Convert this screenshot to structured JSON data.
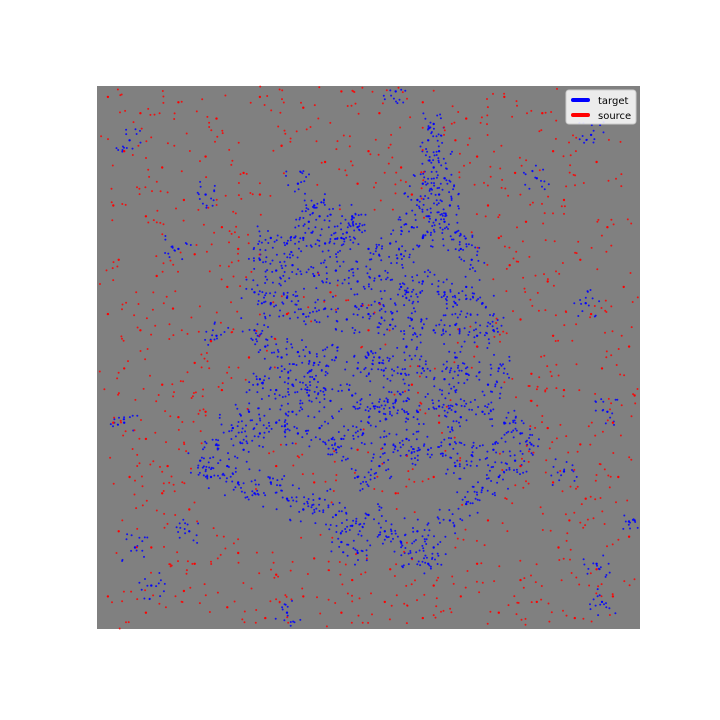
{
  "chart_data": {
    "type": "scatter",
    "title": "",
    "xlabel": "",
    "ylabel": "",
    "xlim": [
      0,
      1
    ],
    "ylim": [
      0,
      1
    ],
    "axes_visible": false,
    "grid": false,
    "plot_background": "#808080",
    "legend": {
      "placement": "top-right",
      "entries": [
        {
          "label": "target",
          "color": "#0000ff"
        },
        {
          "label": "source",
          "color": "#ff0000"
        }
      ]
    },
    "series": [
      {
        "name": "target",
        "color": "#0000ff",
        "description_shape": "dense point cloud shaped like a church/castle with spire",
        "points": [
          [
            0.62,
            0.93
          ],
          [
            0.61,
            0.9
          ],
          [
            0.63,
            0.88
          ],
          [
            0.62,
            0.85
          ],
          [
            0.64,
            0.83
          ],
          [
            0.6,
            0.82
          ],
          [
            0.63,
            0.8
          ],
          [
            0.65,
            0.78
          ],
          [
            0.59,
            0.79
          ],
          [
            0.61,
            0.76
          ],
          [
            0.64,
            0.75
          ],
          [
            0.66,
            0.73
          ],
          [
            0.58,
            0.74
          ],
          [
            0.6,
            0.72
          ],
          [
            0.67,
            0.7
          ],
          [
            0.69,
            0.68
          ],
          [
            0.4,
            0.78
          ],
          [
            0.41,
            0.76
          ],
          [
            0.39,
            0.75
          ],
          [
            0.47,
            0.76
          ],
          [
            0.48,
            0.74
          ],
          [
            0.46,
            0.73
          ],
          [
            0.32,
            0.72
          ],
          [
            0.35,
            0.71
          ],
          [
            0.38,
            0.72
          ],
          [
            0.42,
            0.71
          ],
          [
            0.45,
            0.72
          ],
          [
            0.5,
            0.7
          ],
          [
            0.54,
            0.71
          ],
          [
            0.56,
            0.69
          ],
          [
            0.3,
            0.68
          ],
          [
            0.33,
            0.66
          ],
          [
            0.36,
            0.67
          ],
          [
            0.4,
            0.65
          ],
          [
            0.44,
            0.66
          ],
          [
            0.48,
            0.64
          ],
          [
            0.52,
            0.65
          ],
          [
            0.56,
            0.63
          ],
          [
            0.6,
            0.64
          ],
          [
            0.64,
            0.62
          ],
          [
            0.68,
            0.63
          ],
          [
            0.71,
            0.6
          ],
          [
            0.29,
            0.62
          ],
          [
            0.32,
            0.6
          ],
          [
            0.35,
            0.61
          ],
          [
            0.38,
            0.58
          ],
          [
            0.42,
            0.59
          ],
          [
            0.46,
            0.57
          ],
          [
            0.5,
            0.58
          ],
          [
            0.54,
            0.56
          ],
          [
            0.58,
            0.57
          ],
          [
            0.62,
            0.55
          ],
          [
            0.66,
            0.56
          ],
          [
            0.7,
            0.54
          ],
          [
            0.73,
            0.55
          ],
          [
            0.29,
            0.55
          ],
          [
            0.31,
            0.52
          ],
          [
            0.34,
            0.5
          ],
          [
            0.37,
            0.51
          ],
          [
            0.4,
            0.49
          ],
          [
            0.44,
            0.5
          ],
          [
            0.48,
            0.48
          ],
          [
            0.52,
            0.49
          ],
          [
            0.56,
            0.47
          ],
          [
            0.6,
            0.48
          ],
          [
            0.64,
            0.46
          ],
          [
            0.68,
            0.47
          ],
          [
            0.72,
            0.45
          ],
          [
            0.74,
            0.48
          ],
          [
            0.3,
            0.46
          ],
          [
            0.33,
            0.44
          ],
          [
            0.36,
            0.45
          ],
          [
            0.39,
            0.43
          ],
          [
            0.43,
            0.42
          ],
          [
            0.47,
            0.43
          ],
          [
            0.51,
            0.41
          ],
          [
            0.55,
            0.42
          ],
          [
            0.59,
            0.4
          ],
          [
            0.63,
            0.41
          ],
          [
            0.67,
            0.39
          ],
          [
            0.71,
            0.4
          ],
          [
            0.75,
            0.38
          ],
          [
            0.78,
            0.36
          ],
          [
            0.28,
            0.4
          ],
          [
            0.25,
            0.37
          ],
          [
            0.22,
            0.34
          ],
          [
            0.19,
            0.31
          ],
          [
            0.21,
            0.28
          ],
          [
            0.24,
            0.3
          ],
          [
            0.27,
            0.33
          ],
          [
            0.3,
            0.36
          ],
          [
            0.33,
            0.38
          ],
          [
            0.37,
            0.36
          ],
          [
            0.41,
            0.37
          ],
          [
            0.45,
            0.35
          ],
          [
            0.49,
            0.36
          ],
          [
            0.53,
            0.34
          ],
          [
            0.57,
            0.35
          ],
          [
            0.61,
            0.33
          ],
          [
            0.65,
            0.34
          ],
          [
            0.69,
            0.32
          ],
          [
            0.73,
            0.33
          ],
          [
            0.77,
            0.31
          ],
          [
            0.8,
            0.34
          ],
          [
            0.26,
            0.27
          ],
          [
            0.29,
            0.25
          ],
          [
            0.32,
            0.27
          ],
          [
            0.35,
            0.24
          ],
          [
            0.38,
            0.22
          ],
          [
            0.41,
            0.24
          ],
          [
            0.44,
            0.21
          ],
          [
            0.47,
            0.19
          ],
          [
            0.5,
            0.21
          ],
          [
            0.53,
            0.18
          ],
          [
            0.56,
            0.16
          ],
          [
            0.59,
            0.18
          ],
          [
            0.62,
            0.15
          ],
          [
            0.65,
            0.2
          ],
          [
            0.68,
            0.23
          ],
          [
            0.71,
            0.26
          ],
          [
            0.74,
            0.28
          ],
          [
            0.45,
            0.16
          ],
          [
            0.48,
            0.14
          ],
          [
            0.58,
            0.13
          ],
          [
            0.61,
            0.12
          ],
          [
            0.52,
            0.6
          ],
          [
            0.52,
            0.5
          ],
          [
            0.52,
            0.4
          ],
          [
            0.52,
            0.3
          ],
          [
            0.57,
            0.62
          ],
          [
            0.57,
            0.52
          ],
          [
            0.57,
            0.42
          ],
          [
            0.57,
            0.32
          ],
          [
            0.66,
            0.6
          ],
          [
            0.66,
            0.5
          ],
          [
            0.66,
            0.4
          ],
          [
            0.66,
            0.3
          ],
          [
            0.36,
            0.4
          ],
          [
            0.4,
            0.46
          ],
          [
            0.44,
            0.33
          ],
          [
            0.48,
            0.28
          ],
          [
            0.06,
            0.9
          ],
          [
            0.91,
            0.91
          ],
          [
            0.37,
            0.82
          ],
          [
            0.22,
            0.54
          ],
          [
            0.05,
            0.38
          ],
          [
            0.1,
            0.08
          ],
          [
            0.93,
            0.05
          ],
          [
            0.35,
            0.03
          ],
          [
            0.81,
            0.83
          ],
          [
            0.9,
            0.6
          ],
          [
            0.94,
            0.4
          ],
          [
            0.92,
            0.12
          ],
          [
            0.2,
            0.8
          ],
          [
            0.15,
            0.7
          ],
          [
            0.07,
            0.15
          ],
          [
            0.99,
            0.2
          ],
          [
            0.55,
            0.99
          ],
          [
            0.17,
            0.18
          ],
          [
            0.86,
            0.29
          ]
        ]
      },
      {
        "name": "source",
        "color": "#ff0000",
        "description_shape": "scattered noisy point cloud spread across whole plot",
        "points": [
          [
            0.02,
            0.98
          ],
          [
            0.08,
            0.95
          ],
          [
            0.15,
            0.97
          ],
          [
            0.22,
            0.94
          ],
          [
            0.3,
            0.98
          ],
          [
            0.38,
            0.96
          ],
          [
            0.45,
            0.99
          ],
          [
            0.52,
            0.95
          ],
          [
            0.6,
            0.97
          ],
          [
            0.68,
            0.94
          ],
          [
            0.75,
            0.98
          ],
          [
            0.82,
            0.95
          ],
          [
            0.05,
            0.88
          ],
          [
            0.12,
            0.85
          ],
          [
            0.2,
            0.87
          ],
          [
            0.27,
            0.84
          ],
          [
            0.34,
            0.89
          ],
          [
            0.42,
            0.86
          ],
          [
            0.5,
            0.88
          ],
          [
            0.56,
            0.85
          ],
          [
            0.7,
            0.87
          ],
          [
            0.77,
            0.84
          ],
          [
            0.84,
            0.88
          ],
          [
            0.92,
            0.86
          ],
          [
            0.03,
            0.78
          ],
          [
            0.09,
            0.76
          ],
          [
            0.16,
            0.79
          ],
          [
            0.23,
            0.74
          ],
          [
            0.72,
            0.78
          ],
          [
            0.79,
            0.75
          ],
          [
            0.86,
            0.79
          ],
          [
            0.94,
            0.74
          ],
          [
            0.04,
            0.68
          ],
          [
            0.11,
            0.65
          ],
          [
            0.18,
            0.69
          ],
          [
            0.24,
            0.63
          ],
          [
            0.76,
            0.67
          ],
          [
            0.83,
            0.64
          ],
          [
            0.89,
            0.68
          ],
          [
            0.97,
            0.63
          ],
          [
            0.02,
            0.58
          ],
          [
            0.08,
            0.55
          ],
          [
            0.14,
            0.59
          ],
          [
            0.21,
            0.53
          ],
          [
            0.78,
            0.57
          ],
          [
            0.84,
            0.54
          ],
          [
            0.91,
            0.58
          ],
          [
            0.98,
            0.52
          ],
          [
            0.05,
            0.48
          ],
          [
            0.12,
            0.45
          ],
          [
            0.18,
            0.49
          ],
          [
            0.23,
            0.44
          ],
          [
            0.8,
            0.47
          ],
          [
            0.86,
            0.44
          ],
          [
            0.93,
            0.48
          ],
          [
            0.99,
            0.43
          ],
          [
            0.03,
            0.38
          ],
          [
            0.09,
            0.35
          ],
          [
            0.15,
            0.39
          ],
          [
            0.83,
            0.37
          ],
          [
            0.89,
            0.34
          ],
          [
            0.95,
            0.38
          ],
          [
            0.06,
            0.28
          ],
          [
            0.12,
            0.25
          ],
          [
            0.17,
            0.22
          ],
          [
            0.84,
            0.27
          ],
          [
            0.9,
            0.24
          ],
          [
            0.96,
            0.28
          ],
          [
            0.04,
            0.18
          ],
          [
            0.1,
            0.15
          ],
          [
            0.18,
            0.12
          ],
          [
            0.26,
            0.14
          ],
          [
            0.33,
            0.1
          ],
          [
            0.4,
            0.13
          ],
          [
            0.47,
            0.09
          ],
          [
            0.54,
            0.11
          ],
          [
            0.62,
            0.08
          ],
          [
            0.7,
            0.12
          ],
          [
            0.78,
            0.09
          ],
          [
            0.85,
            0.15
          ],
          [
            0.92,
            0.11
          ],
          [
            0.98,
            0.17
          ],
          [
            0.02,
            0.06
          ],
          [
            0.09,
            0.03
          ],
          [
            0.16,
            0.07
          ],
          [
            0.24,
            0.04
          ],
          [
            0.31,
            0.02
          ],
          [
            0.38,
            0.06
          ],
          [
            0.45,
            0.03
          ],
          [
            0.53,
            0.05
          ],
          [
            0.6,
            0.02
          ],
          [
            0.67,
            0.06
          ],
          [
            0.74,
            0.03
          ],
          [
            0.81,
            0.05
          ],
          [
            0.88,
            0.02
          ],
          [
            0.95,
            0.06
          ],
          [
            0.28,
            0.5
          ],
          [
            0.35,
            0.58
          ],
          [
            0.43,
            0.62
          ],
          [
            0.5,
            0.55
          ],
          [
            0.58,
            0.45
          ],
          [
            0.63,
            0.38
          ],
          [
            0.7,
            0.52
          ],
          [
            0.33,
            0.3
          ],
          [
            0.4,
            0.27
          ],
          [
            0.48,
            0.33
          ],
          [
            0.55,
            0.25
          ],
          [
            0.62,
            0.28
          ],
          [
            0.72,
            0.2
          ],
          [
            0.78,
            0.3
          ],
          [
            0.26,
            0.7
          ],
          [
            0.74,
            0.72
          ],
          [
            0.8,
            0.42
          ],
          [
            0.2,
            0.4
          ],
          [
            0.13,
            0.3
          ],
          [
            0.87,
            0.2
          ],
          [
            0.66,
            0.9
          ],
          [
            0.58,
            0.8
          ],
          [
            0.48,
            0.82
          ],
          [
            0.3,
            0.8
          ]
        ]
      }
    ]
  }
}
